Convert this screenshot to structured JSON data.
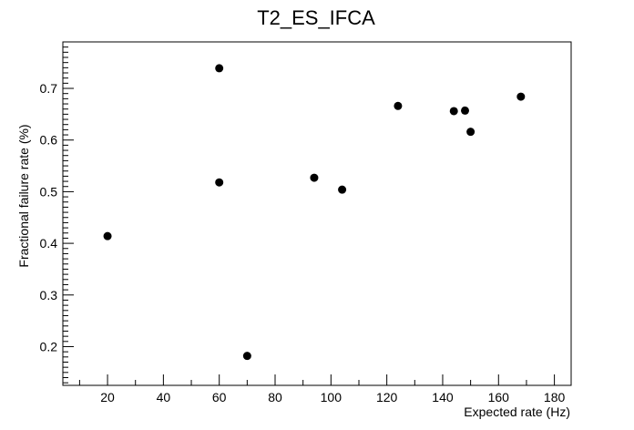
{
  "chart_data": {
    "type": "scatter",
    "title": "T2_ES_IFCA",
    "xlabel": "Expected rate (Hz)",
    "ylabel": "Fractional failure rate (%)",
    "xlim": [
      4,
      186
    ],
    "ylim": [
      0.125,
      0.79
    ],
    "xticks": [
      20,
      40,
      60,
      80,
      100,
      120,
      140,
      160,
      180
    ],
    "xtick_labels": [
      "20",
      "40",
      "60",
      "80",
      "100",
      "120",
      "140",
      "160",
      "180"
    ],
    "yticks": [
      0.2,
      0.3,
      0.4,
      0.5,
      0.6,
      0.7
    ],
    "ytick_labels": [
      "0.2",
      "0.3",
      "0.4",
      "0.5",
      "0.6",
      "0.7"
    ],
    "grid": false,
    "points": [
      {
        "x": 20,
        "y": 0.414
      },
      {
        "x": 60,
        "y": 0.739
      },
      {
        "x": 60,
        "y": 0.518
      },
      {
        "x": 70,
        "y": 0.182
      },
      {
        "x": 94,
        "y": 0.527
      },
      {
        "x": 104,
        "y": 0.504
      },
      {
        "x": 124,
        "y": 0.666
      },
      {
        "x": 144,
        "y": 0.656
      },
      {
        "x": 148,
        "y": 0.657
      },
      {
        "x": 150,
        "y": 0.616
      },
      {
        "x": 168,
        "y": 0.684
      }
    ],
    "marker_color": "#000000"
  }
}
